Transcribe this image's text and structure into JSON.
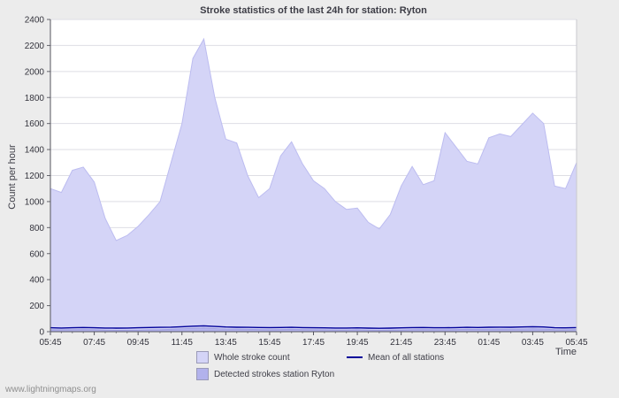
{
  "page": {
    "background": "#ececec",
    "watermark": "www.lightningmaps.org"
  },
  "chart_data": {
    "type": "area",
    "title": "Stroke statistics of the last 24h for station: Ryton",
    "xlabel": "Time",
    "ylabel": "Count per hour",
    "ylim": [
      0,
      2400
    ],
    "ytick_step": 200,
    "grid": true,
    "legend_position": "bottom",
    "x_start": "05:45",
    "x_interval_minutes": 30,
    "x_tick_labels": [
      "05:45",
      "07:45",
      "09:45",
      "11:45",
      "13:45",
      "15:45",
      "17:45",
      "19:45",
      "21:45",
      "23:45",
      "01:45",
      "03:45",
      "05:45"
    ],
    "series": [
      {
        "name": "Whole stroke count",
        "type": "area",
        "color": "#d4d4f7",
        "edge_color": "#bcbcf0",
        "values": [
          1100,
          1070,
          1240,
          1265,
          1150,
          870,
          700,
          740,
          810,
          900,
          1000,
          1300,
          1600,
          2100,
          2250,
          1800,
          1480,
          1450,
          1200,
          1030,
          1100,
          1350,
          1460,
          1290,
          1160,
          1100,
          1000,
          940,
          950,
          840,
          790,
          900,
          1120,
          1270,
          1130,
          1160,
          1530,
          1420,
          1310,
          1290,
          1490,
          1520,
          1500,
          1590,
          1680,
          1600,
          1120,
          1100,
          1300
        ]
      },
      {
        "name": "Detected strokes station Ryton",
        "type": "area",
        "color": "#b2b2ec",
        "edge_color": "#9f9fe0",
        "values": [
          15,
          14,
          15,
          16,
          15,
          12,
          10,
          11,
          12,
          14,
          15,
          18,
          22,
          26,
          28,
          24,
          20,
          19,
          18,
          16,
          15,
          16,
          18,
          16,
          15,
          14,
          13,
          13,
          14,
          12,
          11,
          12,
          13,
          15,
          16,
          15,
          15,
          16,
          18,
          17,
          18,
          19,
          18,
          20,
          22,
          20,
          15,
          14,
          16
        ]
      },
      {
        "name": "Mean of all stations",
        "type": "line",
        "color": "#000099",
        "values": [
          30,
          28,
          30,
          32,
          30,
          28,
          27,
          28,
          30,
          32,
          33,
          35,
          38,
          42,
          45,
          40,
          36,
          34,
          33,
          32,
          31,
          32,
          33,
          31,
          30,
          29,
          28,
          28,
          29,
          27,
          26,
          27,
          29,
          31,
          32,
          30,
          30,
          31,
          33,
          32,
          34,
          35,
          34,
          36,
          38,
          36,
          30,
          29,
          31
        ]
      }
    ]
  }
}
